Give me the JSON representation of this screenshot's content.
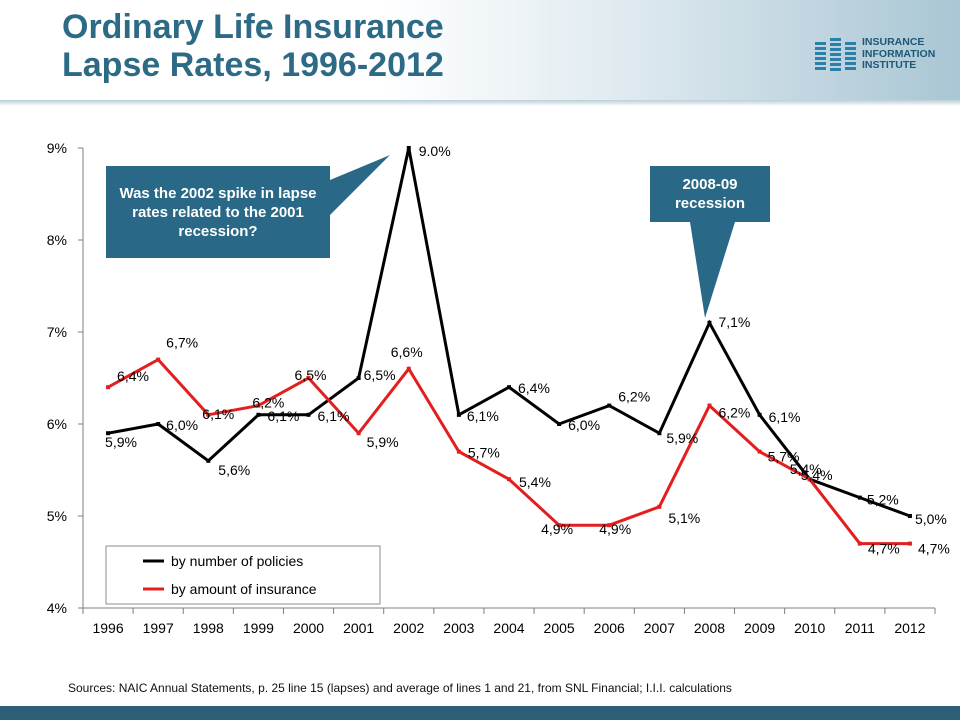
{
  "title": {
    "line1": "Ordinary Life Insurance",
    "line2": "Lapse Rates, 1996-2012"
  },
  "logo": {
    "line1": "INSURANCE",
    "line2": "INFORMATION",
    "line3": "INSTITUTE",
    "icon": "iii-logo-icon"
  },
  "annotations": {
    "spike_question": "Was the 2002 spike in lapse rates related to the 2001 recession?",
    "recession": "2008-09 recession"
  },
  "sources": "Sources:  NAIC Annual Statements, p. 25 line 15 (lapses) and average of lines 1 and 21, from SNL Financial; I.I.I. calculations",
  "colors": {
    "title": "#2d6a86",
    "callout": "#2a6887",
    "policies": "#000000",
    "amount": "#e31e1e",
    "footer": "#2d5f78"
  },
  "chart_data": {
    "type": "line",
    "categories": [
      "1996",
      "1997",
      "1998",
      "1999",
      "2000",
      "2001",
      "2002",
      "2003",
      "2004",
      "2005",
      "2006",
      "2007",
      "2008",
      "2009",
      "2010",
      "2011",
      "2012"
    ],
    "y_ticks": [
      "4%",
      "5%",
      "6%",
      "7%",
      "8%",
      "9%"
    ],
    "ylim": [
      4,
      9
    ],
    "grid": false,
    "legend": "bottom-left",
    "series": [
      {
        "name": "by number of policies",
        "values": [
          5.9,
          6.0,
          5.6,
          6.1,
          6.1,
          6.5,
          9.0,
          6.1,
          6.4,
          6.0,
          6.2,
          5.9,
          7.1,
          6.1,
          5.4,
          5.2,
          5.0
        ],
        "labels": [
          "5,9%",
          "6,0%",
          "5,6%",
          "6,1%",
          "6,1%",
          "6,5%",
          "9.0%",
          "6,1%",
          "6,4%",
          "6,0%",
          "6,2%",
          "5,9%",
          "7,1%",
          "6,1%",
          "5,4%",
          "5,2%",
          "5,0%"
        ]
      },
      {
        "name": "by amount of insurance",
        "values": [
          6.4,
          6.7,
          6.1,
          6.2,
          6.5,
          5.9,
          6.6,
          5.7,
          5.4,
          4.9,
          4.9,
          5.1,
          6.2,
          5.7,
          5.4,
          4.7,
          4.7
        ],
        "labels": [
          "6,4%",
          "6,7%",
          "6,1%",
          "6,2%",
          "6,5%",
          "5,9%",
          "6,6%",
          "5,7%",
          "5,4%",
          "4,9%",
          "4,9%",
          "5,1%",
          "6,2%",
          "5,7%",
          "5,4%",
          "4,7%",
          "4,7%"
        ]
      }
    ]
  }
}
